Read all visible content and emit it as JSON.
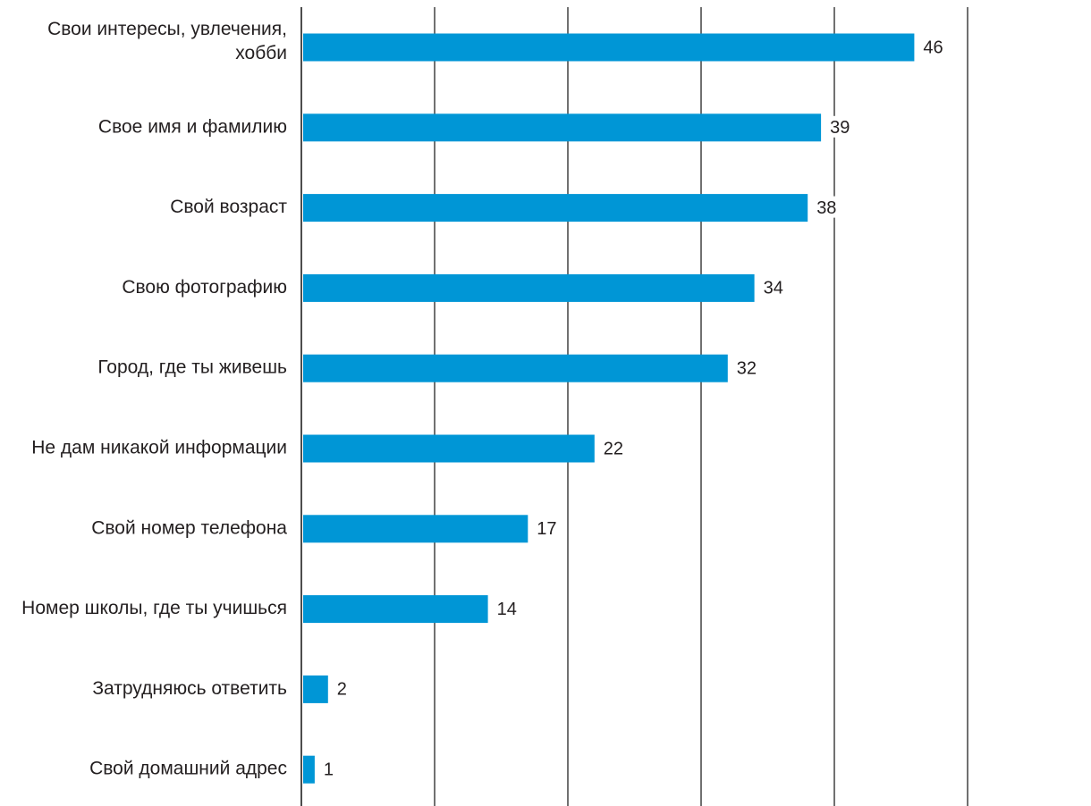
{
  "chart_data": {
    "type": "bar",
    "orientation": "horizontal",
    "title": "",
    "xlabel": "",
    "ylabel": "",
    "xlim": [
      0,
      50
    ],
    "grid": true,
    "legend": "none",
    "bar_color": "#0096d6",
    "categories": [
      [
        "Свои интересы, увлечения,",
        "хобби"
      ],
      [
        "Свое имя и  фамилию"
      ],
      [
        "Свой возраст"
      ],
      [
        "Свою фотографию"
      ],
      [
        "Город, где ты живешь"
      ],
      [
        "Не дам никакой информации"
      ],
      [
        "Свой номер телефона"
      ],
      [
        "Номер школы, где ты учишься"
      ],
      [
        "Затрудняюсь ответить"
      ],
      [
        "Свой домашний адрес"
      ]
    ],
    "values": [
      46,
      39,
      38,
      34,
      32,
      22,
      17,
      14,
      2,
      1
    ]
  }
}
